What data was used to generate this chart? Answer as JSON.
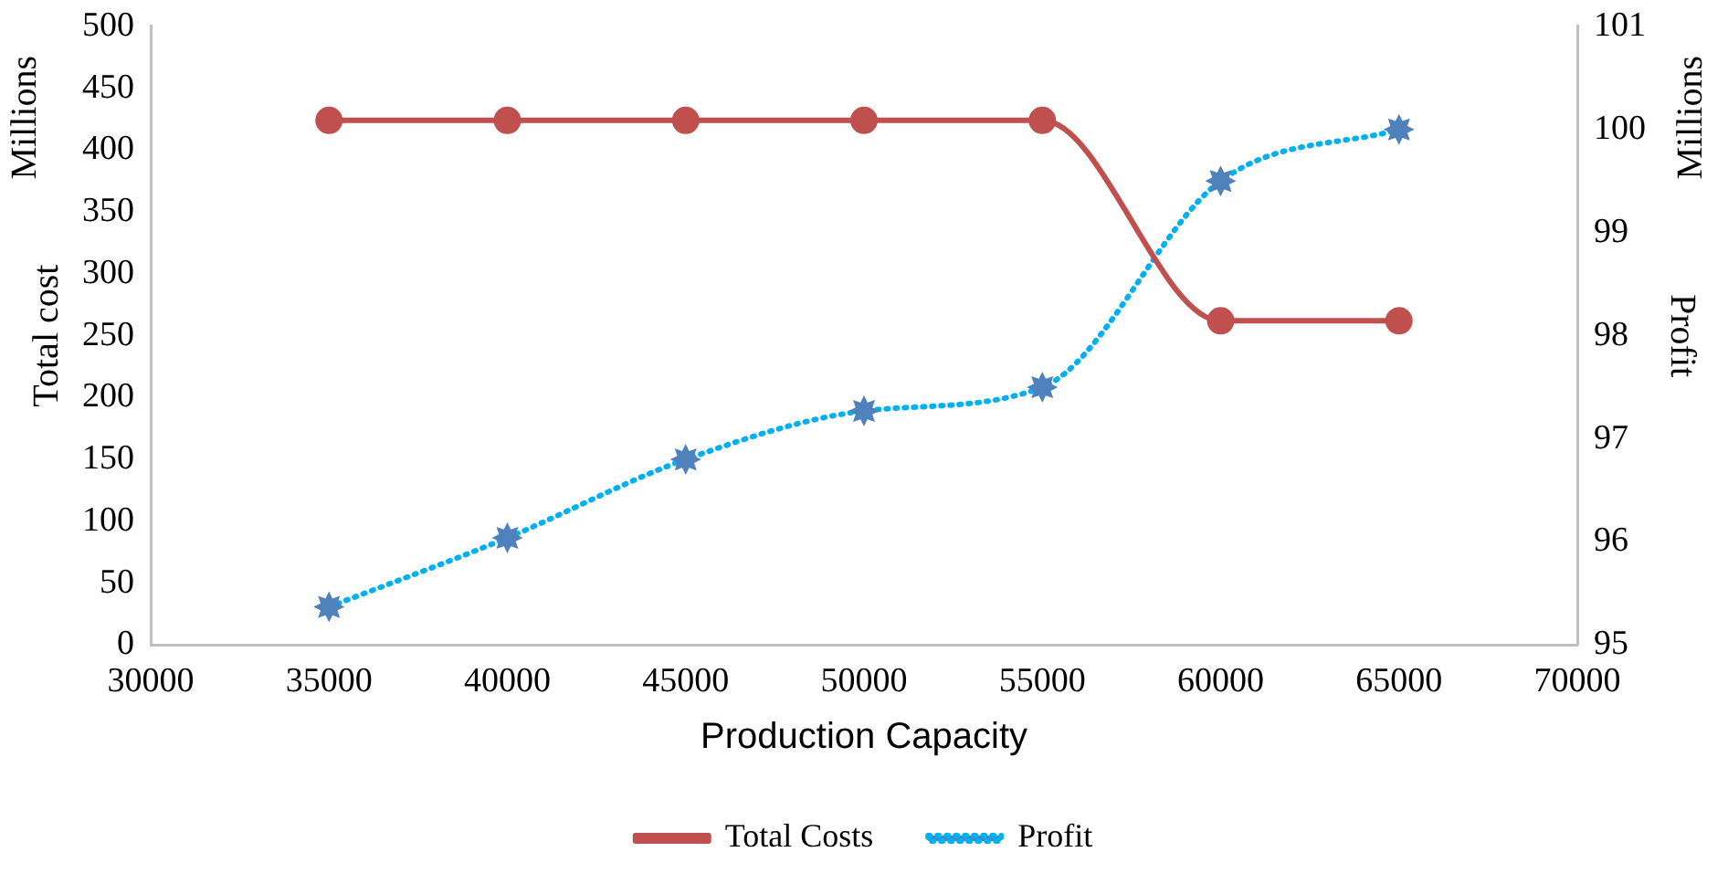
{
  "chart_data": {
    "type": "line",
    "xlabel": "Production Capacity",
    "ylabel": "Total cost",
    "y2label": "Profit",
    "annotations": [
      "Millions",
      "Millions"
    ],
    "x": [
      35000,
      40000,
      45000,
      50000,
      55000,
      60000,
      65000
    ],
    "xlim": [
      30000,
      70000
    ],
    "xticks": [
      30000,
      35000,
      40000,
      45000,
      50000,
      55000,
      60000,
      65000,
      70000
    ],
    "ylim": [
      0,
      500
    ],
    "yticks": [
      0,
      50,
      100,
      150,
      200,
      250,
      300,
      350,
      400,
      450,
      500
    ],
    "y2lim": [
      95,
      101
    ],
    "y2ticks": [
      95,
      96,
      97,
      98,
      99,
      100,
      101
    ],
    "series": [
      {
        "name": "Total Costs",
        "color": "#c0504d",
        "values": [
          424,
          424,
          424,
          424,
          424,
          262,
          262
        ],
        "marker": "circle",
        "line_style": "solid"
      },
      {
        "name": "Profit",
        "color": "#00b0f0",
        "colors": [
          "#4f81bd",
          "#4f81bd",
          "#4f81bd",
          "#4f81bd",
          "#4f81bd",
          "#4f81bd",
          "#4f81bd"
        ],
        "axis": "y2",
        "values": [
          95.37,
          96.04,
          96.8,
          97.27,
          97.5,
          99.5,
          100
        ],
        "marker": "star",
        "line_style": "dotted"
      }
    ],
    "grid": false,
    "legend": "bottom"
  }
}
